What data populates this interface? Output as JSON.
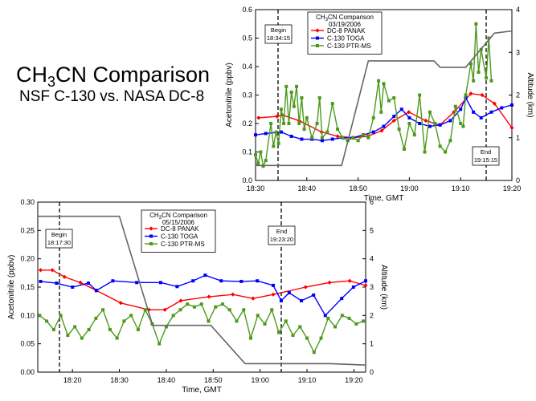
{
  "title": [
    "CH",
    "3",
    "CN Comparison"
  ],
  "subtitle": "NSF C-130 vs. NASA DC-8",
  "chart_data": [
    {
      "type": "line",
      "legend_title": [
        "CH",
        "3",
        "CN Comparison"
      ],
      "date": "03/19/2006",
      "xlabel": "Time, GMT",
      "ylabel": "Acetonitrile  (ppbv)",
      "y2label": "Altitude  (km)",
      "xlim": [
        1110,
        1160
      ],
      "xticks": [
        {
          "value": 1110,
          "label": "18:30"
        },
        {
          "value": 1120,
          "label": "18:40"
        },
        {
          "value": 1130,
          "label": "18:50"
        },
        {
          "value": 1140,
          "label": "19:00"
        },
        {
          "value": 1150,
          "label": "19:10"
        },
        {
          "value": 1160,
          "label": "19:20"
        }
      ],
      "ylim": [
        0,
        0.6
      ],
      "yticks": [
        {
          "value": 0,
          "label": "0.0"
        },
        {
          "value": 0.1,
          "label": "0.1"
        },
        {
          "value": 0.2,
          "label": "0.2"
        },
        {
          "value": 0.3,
          "label": "0.3"
        },
        {
          "value": 0.4,
          "label": "0.4"
        },
        {
          "value": 0.5,
          "label": "0.5"
        },
        {
          "value": 0.6,
          "label": "0.6"
        }
      ],
      "y2lim": [
        0,
        4
      ],
      "y2ticks": [
        0,
        1,
        2,
        3,
        4
      ],
      "annotations": [
        {
          "label": "Begin",
          "time": "18:34:15"
        },
        {
          "label": "End",
          "time": "19:15:15"
        }
      ],
      "series": [
        {
          "name": "DC-8 PANAK",
          "color": "#ff0000",
          "marker": "diamond",
          "x": [
            1110.6,
            1114.2,
            1115.2,
            1118.5,
            1122.9,
            1126,
            1129.1,
            1131.9,
            1134.6,
            1137,
            1139.9,
            1143.2,
            1146,
            1148.7,
            1152,
            1154.2,
            1156.6,
            1160
          ],
          "values": [
            0.22,
            0.225,
            0.23,
            0.21,
            0.17,
            0.155,
            0.15,
            0.155,
            0.175,
            0.21,
            0.24,
            0.21,
            0.195,
            0.24,
            0.305,
            0.3,
            0.27,
            0.185
          ]
        },
        {
          "name": "C-130 TOGA",
          "color": "#0000ff",
          "marker": "square",
          "x": [
            1110,
            1112,
            1115,
            1117,
            1119,
            1121,
            1123,
            1125,
            1127,
            1129,
            1131,
            1133,
            1135,
            1137,
            1138.5,
            1140,
            1142,
            1144,
            1146,
            1148,
            1150,
            1151,
            1152.5,
            1154,
            1156,
            1158,
            1160
          ],
          "values": [
            0.16,
            0.165,
            0.17,
            0.155,
            0.145,
            0.145,
            0.14,
            0.145,
            0.15,
            0.15,
            0.16,
            0.17,
            0.19,
            0.225,
            0.25,
            0.22,
            0.2,
            0.19,
            0.195,
            0.21,
            0.25,
            0.29,
            0.24,
            0.22,
            0.24,
            0.255,
            0.265
          ]
        },
        {
          "name": "C-130 PTR-MS",
          "color": "#4c9a1c",
          "marker": "square",
          "x": [
            1110,
            1110.5,
            1111,
            1111.5,
            1112,
            1113,
            1113.5,
            1114,
            1114.5,
            1115,
            1115.5,
            1116,
            1116.5,
            1117,
            1117.5,
            1118,
            1118.5,
            1119,
            1119.5,
            1120,
            1121,
            1122,
            1122.5,
            1123,
            1124,
            1125,
            1126,
            1127,
            1128,
            1129,
            1130,
            1131,
            1132,
            1133,
            1134,
            1134.5,
            1135,
            1136,
            1137,
            1138,
            1139,
            1140,
            1141,
            1142,
            1143,
            1144,
            1145,
            1146,
            1147,
            1148,
            1149,
            1150,
            1150.5,
            1151,
            1152,
            1152.5,
            1153,
            1153.5,
            1154,
            1155,
            1155.5,
            1156
          ],
          "values": [
            0.09,
            0.06,
            0.1,
            0.05,
            0.07,
            0.2,
            0.12,
            0.17,
            0.13,
            0.25,
            0.2,
            0.33,
            0.2,
            0.31,
            0.26,
            0.33,
            0.2,
            0.29,
            0.18,
            0.22,
            0.15,
            0.2,
            0.29,
            0.15,
            0.17,
            0.27,
            0.18,
            0.15,
            0.14,
            0.15,
            0.14,
            0.16,
            0.15,
            0.22,
            0.35,
            0.24,
            0.34,
            0.28,
            0.29,
            0.18,
            0.11,
            0.2,
            0.16,
            0.3,
            0.1,
            0.24,
            0.2,
            0.12,
            0.1,
            0.14,
            0.26,
            0.2,
            0.19,
            0.3,
            0.41,
            0.35,
            0.55,
            0.38,
            0.46,
            0.36,
            0.5,
            0.35
          ]
        },
        {
          "color": "#666666",
          "axis": "y2",
          "x": [
            1110,
            1126.8,
            1132,
            1144.8,
            1146,
            1151,
            1156.6,
            1160
          ],
          "values": [
            0.35,
            0.35,
            2.8,
            2.8,
            2.65,
            2.65,
            3.45,
            3.5
          ]
        }
      ]
    },
    {
      "type": "line",
      "legend_title": [
        "CH",
        "3",
        "CN Comparison"
      ],
      "date": "05/15/2006",
      "xlabel": "Time, GMT",
      "ylabel": "Acetonitrile  (ppbv)",
      "y2label": "Altitude  (km)",
      "xlim": [
        1092.6,
        1162.5
      ],
      "xticks": [
        {
          "value": 1100,
          "label": "18:20"
        },
        {
          "value": 1110,
          "label": "18:30"
        },
        {
          "value": 1120,
          "label": "18:40"
        },
        {
          "value": 1130,
          "label": "18:50"
        },
        {
          "value": 1140,
          "label": "19:00"
        },
        {
          "value": 1150,
          "label": "19:10"
        },
        {
          "value": 1160,
          "label": "19:20"
        }
      ],
      "ylim": [
        0,
        0.3
      ],
      "yticks": [
        {
          "value": 0,
          "label": "0.00"
        },
        {
          "value": 0.05,
          "label": "0.05"
        },
        {
          "value": 0.1,
          "label": "0.10"
        },
        {
          "value": 0.15,
          "label": "0.15"
        },
        {
          "value": 0.2,
          "label": "0.20"
        },
        {
          "value": 0.25,
          "label": "0.25"
        },
        {
          "value": 0.3,
          "label": "0.30"
        }
      ],
      "y2lim": [
        0,
        6
      ],
      "y2ticks": [
        0,
        1,
        2,
        3,
        4,
        5,
        6
      ],
      "annotations": [
        {
          "label": "Begin",
          "time": "18:17:30"
        },
        {
          "label": "End",
          "time": "19:23:20"
        }
      ],
      "series": [
        {
          "name": "DC-8 PANAK",
          "color": "#ff0000",
          "marker": "diamond",
          "x": [
            1093.2,
            1095.7,
            1098.3,
            1101.7,
            1105.1,
            1110.3,
            1116.3,
            1119.7,
            1123.1,
            1129.1,
            1134.2,
            1138.5,
            1142.8,
            1149.7,
            1154.8,
            1159.1,
            1162.5
          ],
          "values": [
            0.18,
            0.18,
            0.168,
            0.158,
            0.144,
            0.122,
            0.11,
            0.11,
            0.126,
            0.133,
            0.137,
            0.13,
            0.137,
            0.15,
            0.158,
            0.161,
            0.153
          ]
        },
        {
          "name": "C-130 TOGA",
          "color": "#0000ff",
          "marker": "square",
          "x": [
            1093.2,
            1096.6,
            1100,
            1103.4,
            1105.1,
            1108.6,
            1113.7,
            1118.8,
            1122.3,
            1125.7,
            1128.3,
            1131.7,
            1136,
            1139.4,
            1142.8,
            1144.5,
            1146.2,
            1148.8,
            1151.4,
            1153.9,
            1157.4,
            1159.9,
            1162.5
          ],
          "values": [
            0.16,
            0.157,
            0.15,
            0.157,
            0.144,
            0.161,
            0.158,
            0.158,
            0.151,
            0.161,
            0.171,
            0.161,
            0.16,
            0.161,
            0.153,
            0.126,
            0.14,
            0.126,
            0.136,
            0.1,
            0.13,
            0.15,
            0.161
          ]
        },
        {
          "name": "C-130 PTR-MS",
          "color": "#4c9a1c",
          "marker": "square",
          "x": [
            1093,
            1094.5,
            1096,
            1097.5,
            1099,
            1100.5,
            1102,
            1103.5,
            1105,
            1106.5,
            1108,
            1109.5,
            1111,
            1112.5,
            1114,
            1115.5,
            1117,
            1118.5,
            1120,
            1121.5,
            1123,
            1124.5,
            1126,
            1127.5,
            1129,
            1130.5,
            1132,
            1133.5,
            1135,
            1136.5,
            1138,
            1139.5,
            1141,
            1142.5,
            1144,
            1145.5,
            1147,
            1148.5,
            1150,
            1151.5,
            1153,
            1154.5,
            1156,
            1157.5,
            1159,
            1160.5,
            1162
          ],
          "values": [
            0.1,
            0.09,
            0.075,
            0.1,
            0.065,
            0.08,
            0.06,
            0.075,
            0.095,
            0.11,
            0.075,
            0.06,
            0.09,
            0.1,
            0.075,
            0.11,
            0.085,
            0.05,
            0.08,
            0.1,
            0.11,
            0.12,
            0.115,
            0.12,
            0.09,
            0.115,
            0.12,
            0.11,
            0.09,
            0.11,
            0.06,
            0.1,
            0.085,
            0.11,
            0.07,
            0.09,
            0.065,
            0.08,
            0.06,
            0.035,
            0.06,
            0.095,
            0.08,
            0.1,
            0.095,
            0.085,
            0.09
          ]
        },
        {
          "color": "#666666",
          "axis": "y2",
          "x": [
            1092.6,
            1110,
            1117.1,
            1129.5,
            1136.8,
            1155,
            1162.5
          ],
          "values": [
            5.5,
            5.5,
            1.65,
            1.65,
            0.3,
            0.3,
            0.25
          ]
        }
      ]
    }
  ]
}
